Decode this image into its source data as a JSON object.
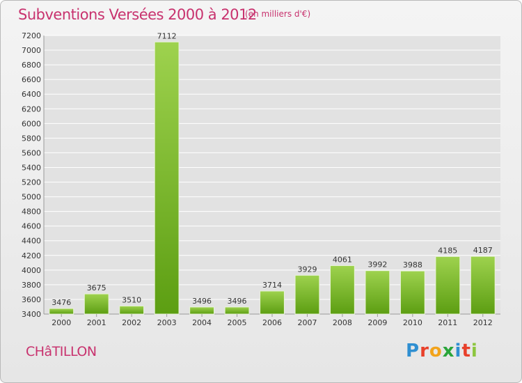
{
  "header": {
    "title": "Subventions Versées 2000 à 2012",
    "unit_note": "(en milliers d'€)"
  },
  "footer": {
    "commune": "CHâTILLON",
    "logo_text": "Proxiti",
    "logo_colors": [
      "#2f8fd1",
      "#e8402a",
      "#f2a31b",
      "#2aa53a",
      "#2f8fd1",
      "#e8402a",
      "#8cc63f"
    ]
  },
  "colors": {
    "title": "#c8326e",
    "bar_top": "#9ed24e",
    "bar_bottom": "#5c9e12",
    "grid": "#ffffff",
    "text": "#333333"
  },
  "chart_data": {
    "type": "bar",
    "categories": [
      "2000",
      "2001",
      "2002",
      "2003",
      "2004",
      "2005",
      "2006",
      "2007",
      "2008",
      "2009",
      "2010",
      "2011",
      "2012"
    ],
    "values": [
      3476,
      3675,
      3510,
      7112,
      3496,
      3496,
      3714,
      3929,
      4061,
      3992,
      3988,
      4185,
      4187
    ],
    "data_labels": [
      "3476",
      "3675",
      "3510",
      "7112",
      "3496",
      "3496",
      "3714",
      "3929",
      "4061",
      "3992",
      "3988",
      "4185",
      "4187"
    ],
    "ylim": [
      3400,
      7200
    ],
    "yticks": [
      3400,
      3600,
      3800,
      4000,
      4200,
      4400,
      4600,
      4800,
      5000,
      5200,
      5400,
      5600,
      5800,
      6000,
      6200,
      6400,
      6600,
      6800,
      7000,
      7200
    ],
    "grid": true,
    "legend": "none"
  }
}
